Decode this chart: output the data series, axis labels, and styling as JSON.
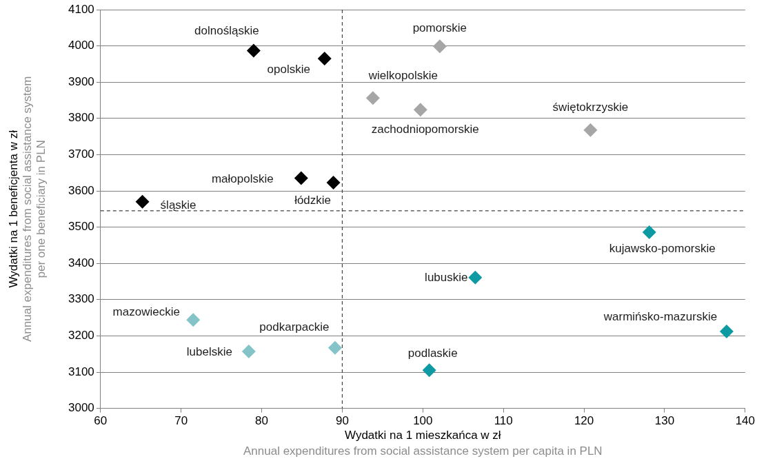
{
  "chart_data": {
    "type": "scatter",
    "xlabel": "Wydatki na 1 mieszkańca w zł\nAnnual expenditures from social assistance system per capita in PLN",
    "ylabel": "Wydatki na 1 beneficjenta w zł\nAnnual expenditures from social assistance system\nper one beneficiary in PLN",
    "xlim": [
      60,
      140
    ],
    "xticks": [
      60,
      70,
      80,
      90,
      100,
      110,
      120,
      130,
      140
    ],
    "ylim": [
      3000,
      4100
    ],
    "yticks": [
      3000,
      3100,
      3200,
      3300,
      3400,
      3500,
      3600,
      3700,
      3800,
      3900,
      4000,
      4100
    ],
    "grid": "y",
    "legend": false,
    "marker": "diamond",
    "series": [
      {
        "color": "#000000",
        "x": [
          79.0,
          87.8,
          84.9,
          88.9,
          65.2
        ],
        "values": [
          3987,
          3965,
          3635,
          3623,
          3570
        ]
      },
      {
        "color": "#a6a6a6",
        "x": [
          102.1,
          93.8,
          99.7,
          120.8
        ],
        "values": [
          3999,
          3856,
          3824,
          3768
        ]
      },
      {
        "color": "#0e9aa2",
        "x": [
          128.1,
          106.5,
          137.7,
          100.8
        ],
        "values": [
          3486,
          3361,
          3212,
          3105
        ]
      },
      {
        "color": "#84c3c8",
        "x": [
          71.5,
          78.4,
          89.1
        ],
        "values": [
          3244,
          3157,
          3167
        ]
      }
    ],
    "ref_lines": [
      {
        "axis": "x",
        "value": 90,
        "line_style": "dashed",
        "color": "#404040"
      },
      {
        "axis": "y",
        "value": 3545,
        "line_style": "dashed",
        "color": "#404040"
      }
    ],
    "annotations": [
      {
        "text": "dolnośląskie",
        "x": 79.0,
        "y": 3987
      },
      {
        "text": "opolskie",
        "x": 87.8,
        "y": 3965
      },
      {
        "text": "pomorskie",
        "x": 102.1,
        "y": 3999
      },
      {
        "text": "wielkopolskie",
        "x": 93.8,
        "y": 3856
      },
      {
        "text": "zachodniopomorskie",
        "x": 99.7,
        "y": 3824
      },
      {
        "text": "świętokrzyskie",
        "x": 120.8,
        "y": 3768
      },
      {
        "text": "małopolskie",
        "x": 84.9,
        "y": 3635
      },
      {
        "text": "łódzkie",
        "x": 88.9,
        "y": 3623
      },
      {
        "text": "śląskie",
        "x": 65.2,
        "y": 3570
      },
      {
        "text": "kujawsko-pomorskie",
        "x": 128.1,
        "y": 3486
      },
      {
        "text": "lubuskie",
        "x": 106.5,
        "y": 3361
      },
      {
        "text": "warmińsko-mazurskie",
        "x": 137.7,
        "y": 3212
      },
      {
        "text": "podlaskie",
        "x": 100.8,
        "y": 3105
      },
      {
        "text": "mazowieckie",
        "x": 71.5,
        "y": 3244
      },
      {
        "text": "lubelskie",
        "x": 78.4,
        "y": 3157
      },
      {
        "text": "podkarpackie",
        "x": 89.1,
        "y": 3167
      }
    ]
  }
}
